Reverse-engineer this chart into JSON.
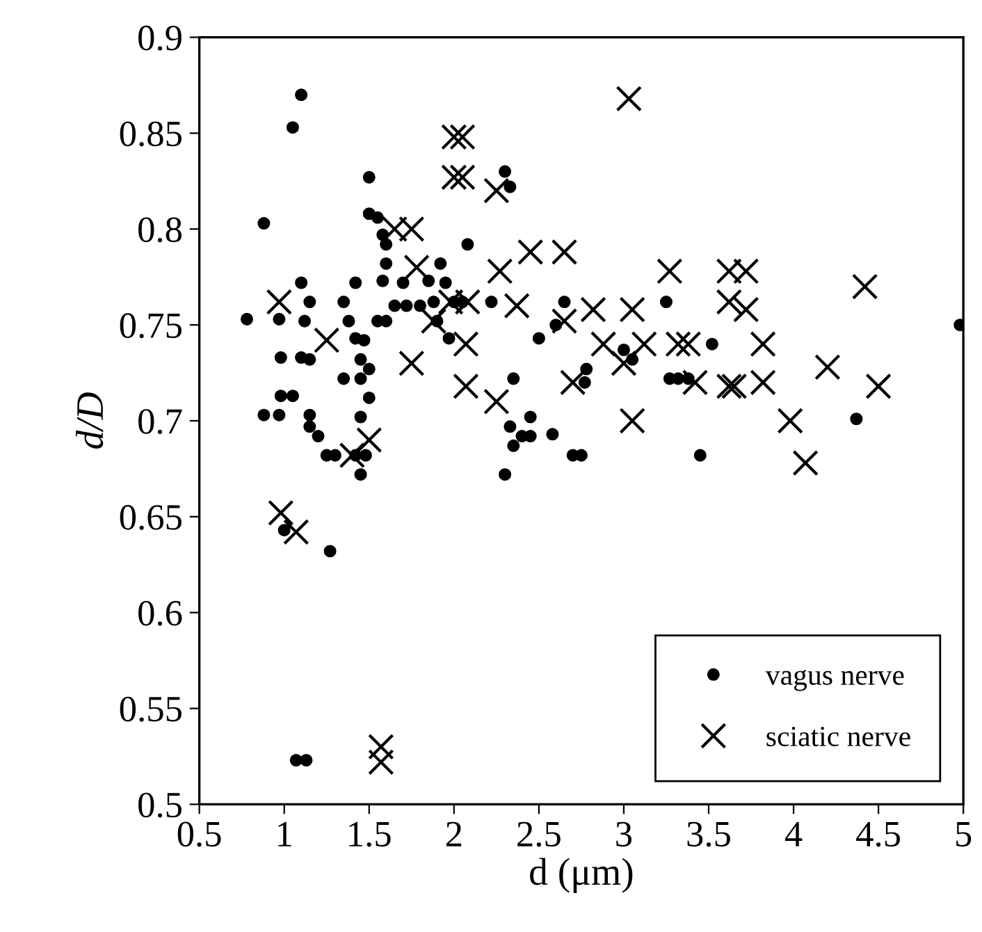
{
  "chart_data": {
    "type": "scatter",
    "xlabel": "d (μm)",
    "ylabel": "d/D",
    "xlim": [
      0.5,
      5
    ],
    "xticks": [
      0.5,
      1,
      1.5,
      2,
      2.5,
      3,
      3.5,
      4,
      4.5,
      5
    ],
    "ylim": [
      0.5,
      0.9
    ],
    "yticks": [
      0.5,
      0.55,
      0.6,
      0.65,
      0.7,
      0.75,
      0.8,
      0.85,
      0.9
    ],
    "grid": false,
    "legend": "bottom right",
    "series": [
      {
        "name": "vagus nerve",
        "color": "#000000",
        "marker": "circle",
        "x": [
          1.1,
          1.05,
          0.88,
          0.78,
          0.88,
          0.97,
          0.98,
          0.98,
          0.97,
          1.05,
          1.1,
          1.15,
          1.12,
          1.1,
          1.15,
          1.15,
          1.15,
          1.2,
          1.25,
          1.3,
          1.35,
          1.38,
          1.35,
          1.42,
          1.42,
          1.45,
          1.45,
          1.45,
          1.47,
          1.5,
          1.5,
          1.48,
          1.45,
          1.42,
          1.5,
          1.5,
          1.55,
          1.6,
          1.58,
          1.6,
          1.58,
          1.55,
          1.6,
          1.65,
          1.7,
          1.72,
          1.8,
          1.85,
          1.88,
          1.9,
          1.92,
          1.95,
          2.0,
          1.97,
          2.05,
          2.08,
          2.22,
          2.3,
          2.33,
          2.35,
          2.33,
          2.35,
          2.3,
          2.4,
          2.45,
          2.45,
          2.5,
          2.58,
          2.6,
          2.65,
          2.7,
          2.75,
          2.77,
          2.78,
          3.0,
          3.05,
          3.25,
          3.27,
          3.32,
          3.38,
          3.45,
          3.52,
          4.37,
          4.98,
          1.07,
          1.13,
          1.0,
          1.27
        ],
        "values": [
          0.87,
          0.853,
          0.803,
          0.753,
          0.703,
          0.753,
          0.733,
          0.713,
          0.703,
          0.713,
          0.772,
          0.762,
          0.752,
          0.733,
          0.732,
          0.703,
          0.697,
          0.692,
          0.682,
          0.682,
          0.762,
          0.752,
          0.722,
          0.772,
          0.743,
          0.732,
          0.722,
          0.702,
          0.742,
          0.712,
          0.727,
          0.682,
          0.672,
          0.682,
          0.827,
          0.808,
          0.806,
          0.792,
          0.797,
          0.782,
          0.773,
          0.752,
          0.752,
          0.76,
          0.772,
          0.76,
          0.76,
          0.773,
          0.762,
          0.752,
          0.782,
          0.772,
          0.762,
          0.743,
          0.762,
          0.792,
          0.762,
          0.83,
          0.822,
          0.722,
          0.697,
          0.687,
          0.672,
          0.692,
          0.702,
          0.692,
          0.743,
          0.693,
          0.75,
          0.762,
          0.682,
          0.682,
          0.72,
          0.727,
          0.737,
          0.732,
          0.762,
          0.722,
          0.722,
          0.722,
          0.682,
          0.74,
          0.701,
          0.75,
          0.523,
          0.523,
          0.643,
          0.632
        ]
      },
      {
        "name": "sciatic nerve",
        "color": "#000000",
        "marker": "cross",
        "x": [
          0.97,
          1.25,
          1.4,
          1.5,
          1.65,
          1.75,
          1.78,
          1.75,
          1.88,
          2.0,
          2.05,
          2.0,
          2.05,
          1.98,
          2.08,
          2.07,
          2.07,
          2.25,
          2.27,
          2.25,
          2.37,
          2.45,
          2.65,
          2.65,
          2.7,
          2.82,
          2.88,
          3.0,
          3.03,
          3.05,
          3.05,
          3.12,
          3.27,
          3.32,
          3.38,
          3.42,
          3.62,
          3.72,
          3.62,
          3.72,
          3.62,
          3.65,
          3.82,
          3.82,
          3.98,
          4.07,
          4.2,
          4.42,
          4.5,
          0.98,
          1.07,
          1.57,
          1.57
        ],
        "values": [
          0.762,
          0.742,
          0.682,
          0.69,
          0.8,
          0.8,
          0.78,
          0.73,
          0.752,
          0.848,
          0.848,
          0.827,
          0.827,
          0.762,
          0.762,
          0.74,
          0.718,
          0.82,
          0.778,
          0.71,
          0.76,
          0.788,
          0.788,
          0.752,
          0.72,
          0.758,
          0.74,
          0.73,
          0.868,
          0.758,
          0.7,
          0.74,
          0.778,
          0.74,
          0.74,
          0.72,
          0.778,
          0.778,
          0.762,
          0.758,
          0.718,
          0.718,
          0.74,
          0.72,
          0.7,
          0.678,
          0.728,
          0.77,
          0.718,
          0.652,
          0.642,
          0.53,
          0.522
        ]
      }
    ]
  }
}
